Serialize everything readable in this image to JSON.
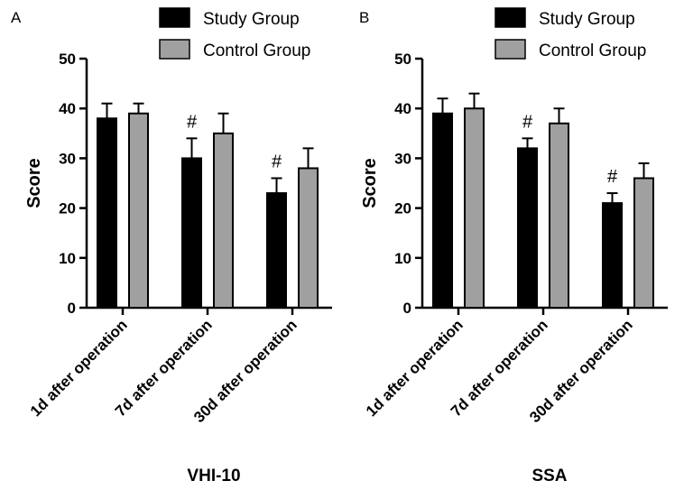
{
  "chart_data": [
    {
      "type": "bar",
      "panel": "A",
      "title": "VHI-10",
      "ylabel": "Score",
      "ylim": [
        0,
        50
      ],
      "yticks": [
        0,
        10,
        20,
        30,
        40,
        50
      ],
      "categories": [
        "1d after operation",
        "7d after operation",
        "30d after operation"
      ],
      "series": [
        {
          "name": "Study Group",
          "color": "#000000",
          "values": [
            38,
            30,
            23
          ],
          "errors": [
            3,
            4,
            3
          ]
        },
        {
          "name": "Control Group",
          "color": "#a0a0a0",
          "values": [
            39,
            35,
            28
          ],
          "errors": [
            2,
            4,
            4
          ]
        }
      ],
      "annotations": [
        "",
        "#",
        "#"
      ],
      "legend": "top-right",
      "grid": false
    },
    {
      "type": "bar",
      "panel": "B",
      "title": "SSA",
      "ylabel": "Score",
      "ylim": [
        0,
        50
      ],
      "yticks": [
        0,
        10,
        20,
        30,
        40,
        50
      ],
      "categories": [
        "1d after operation",
        "7d after operation",
        "30d after operation"
      ],
      "series": [
        {
          "name": "Study Group",
          "color": "#000000",
          "values": [
            39,
            32,
            21
          ],
          "errors": [
            3,
            2,
            2
          ]
        },
        {
          "name": "Control Group",
          "color": "#a0a0a0",
          "values": [
            40,
            37,
            26
          ],
          "errors": [
            3,
            3,
            3
          ]
        }
      ],
      "annotations": [
        "",
        "#",
        "#"
      ],
      "legend": "top-right",
      "grid": false
    }
  ]
}
